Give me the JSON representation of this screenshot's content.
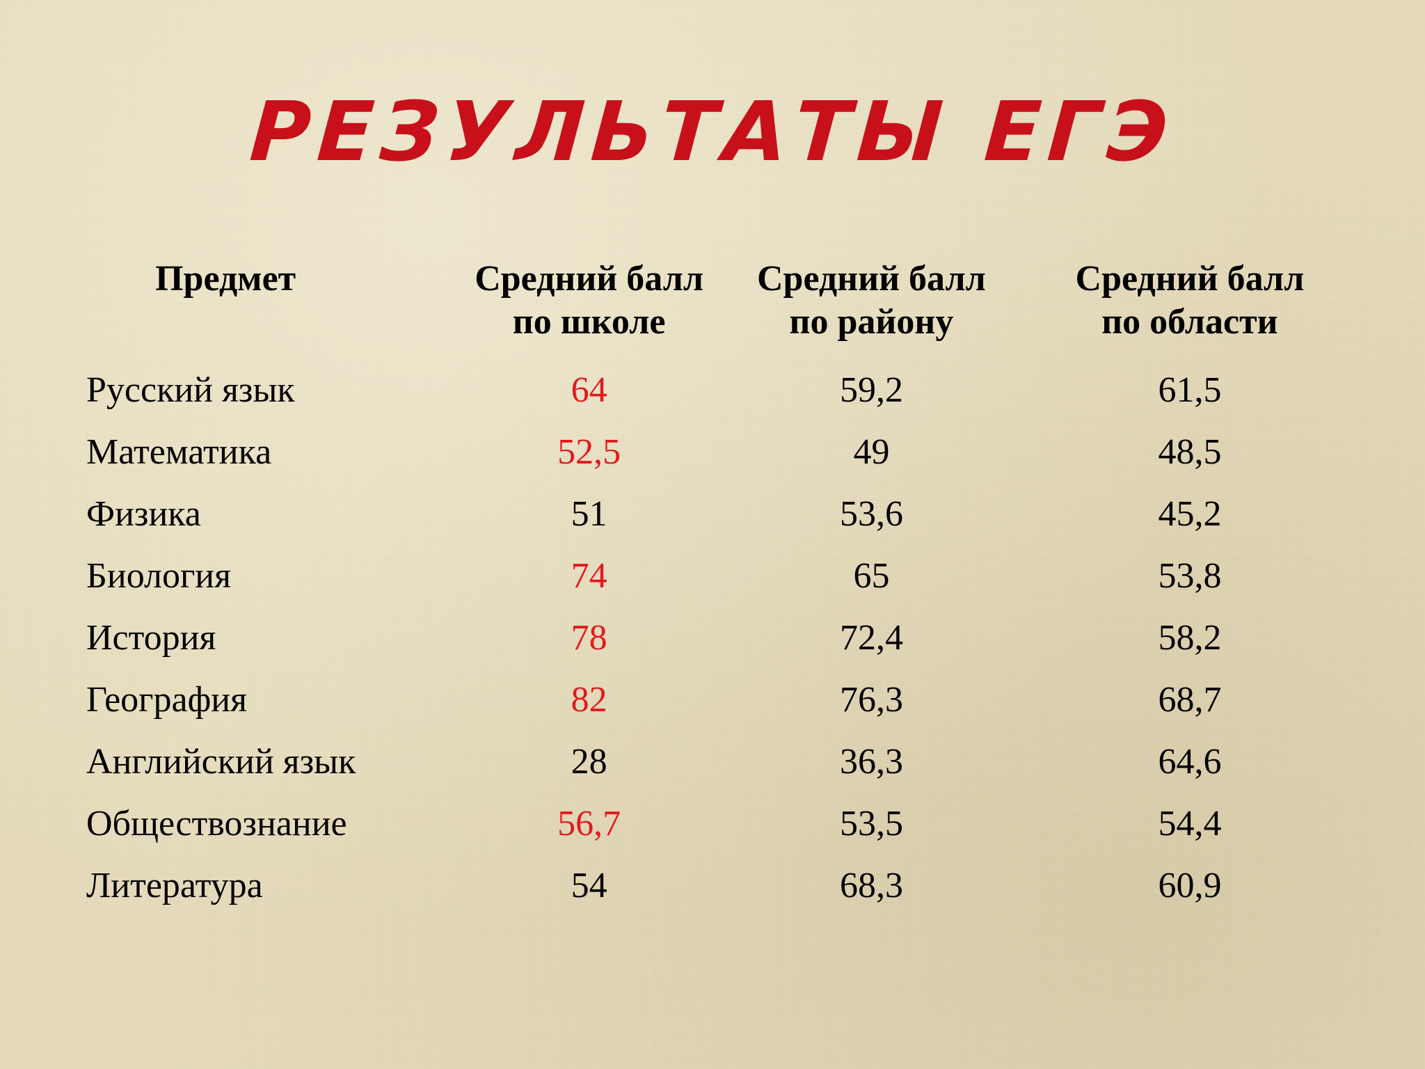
{
  "title": "РЕЗУЛЬТАТЫ ЕГЭ",
  "colors": {
    "title": "#c8101a",
    "highlight": "#e3191c",
    "text": "#000000",
    "background": "#e6dcbd"
  },
  "table": {
    "headers": {
      "subject": "Предмет",
      "school": {
        "line1": "Средний балл",
        "line2": "по школе"
      },
      "district": {
        "line1": "Средний балл",
        "line2": "по району"
      },
      "region": {
        "line1": "Средний балл",
        "line2": "по области"
      }
    },
    "rows": [
      {
        "subject": "Русский язык",
        "school": "64",
        "school_highlighted": true,
        "district": "59,2",
        "region": "61,5"
      },
      {
        "subject": "Математика",
        "school": "52,5",
        "school_highlighted": true,
        "district": "49",
        "region": "48,5"
      },
      {
        "subject": "Физика",
        "school": "51",
        "school_highlighted": false,
        "district": "53,6",
        "region": "45,2"
      },
      {
        "subject": "Биология",
        "school": "74",
        "school_highlighted": true,
        "district": "65",
        "region": "53,8"
      },
      {
        "subject": "История",
        "school": "78",
        "school_highlighted": true,
        "district": "72,4",
        "region": "58,2"
      },
      {
        "subject": "География",
        "school": "82",
        "school_highlighted": true,
        "district": "76,3",
        "region": "68,7"
      },
      {
        "subject": "Английский язык",
        "school": "28",
        "school_highlighted": false,
        "district": "36,3",
        "region": "64,6"
      },
      {
        "subject": "Обществознание",
        "school": "56,7",
        "school_highlighted": true,
        "district": "53,5",
        "region": "54,4"
      },
      {
        "subject": "Литература",
        "school": "54",
        "school_highlighted": false,
        "district": "68,3",
        "region": "60,9"
      }
    ]
  }
}
